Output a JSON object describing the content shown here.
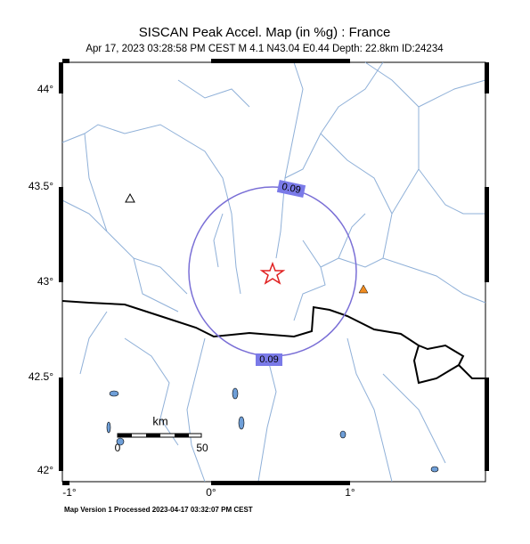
{
  "header": {
    "title": "SISCAN Peak Accel. Map (in %g) : France",
    "subtitle": "Apr 17, 2023 03:28:58 PM CEST   M 4.1   N43.04 E0.44   Depth: 22.8km   ID:24234"
  },
  "axes": {
    "lat_labels": [
      "44°",
      "43.5°",
      "43°",
      "42.5°",
      "42°"
    ],
    "lon_labels": [
      "-1°",
      "0°",
      "1°"
    ]
  },
  "contour_labels": [
    "0.09",
    "0.09"
  ],
  "scalebar": {
    "unit": "km",
    "labels": [
      "0",
      "50"
    ]
  },
  "footer": "Map Version 1 Processed 2023-04-17 03:32:07 PM CEST"
}
